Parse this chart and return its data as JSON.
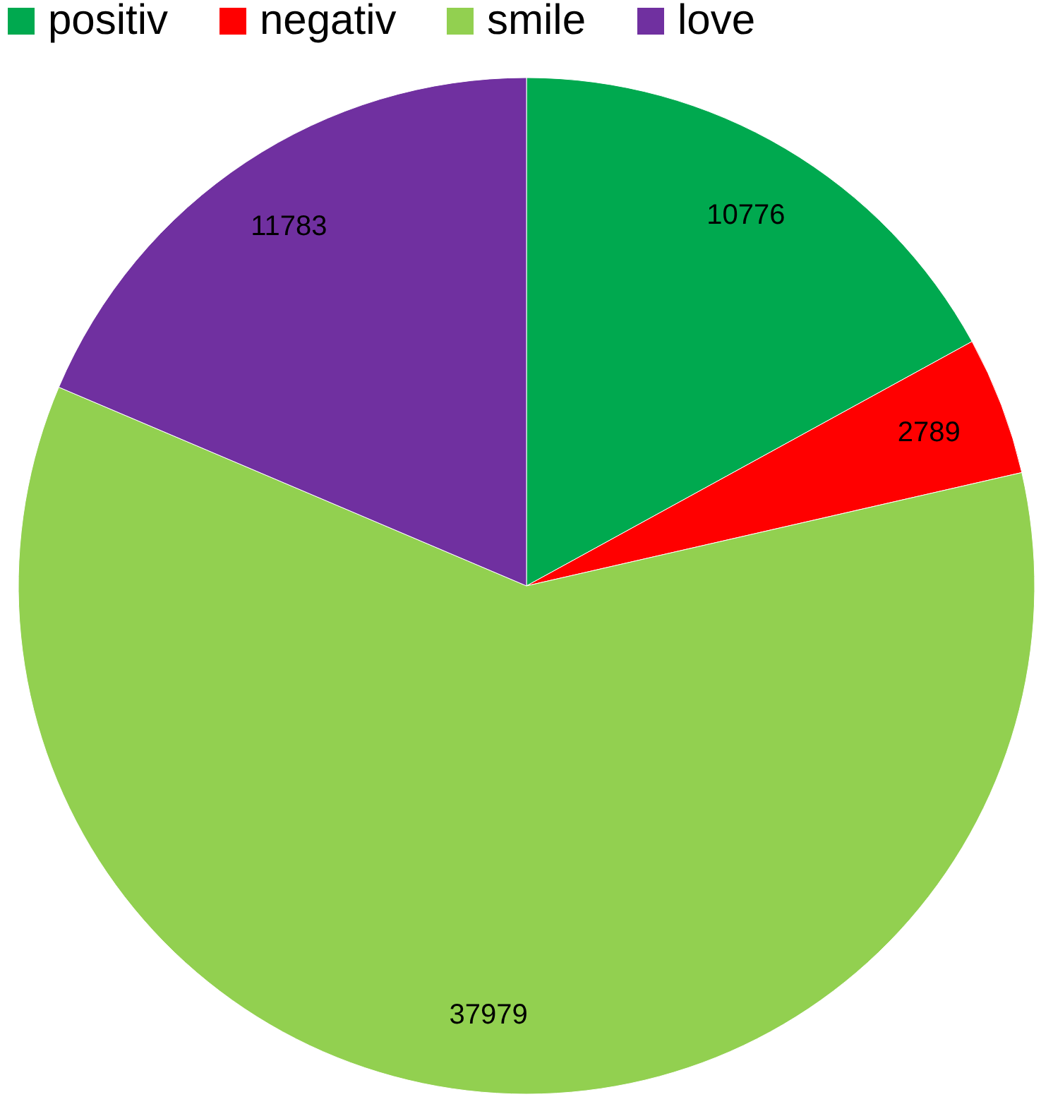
{
  "chart_data": {
    "type": "pie",
    "categories": [
      "positiv",
      "negativ",
      "smile",
      "love"
    ],
    "values": [
      10776,
      2789,
      37979,
      11783
    ],
    "colors": [
      "#00a94f",
      "#ff0000",
      "#92d050",
      "#7030a0"
    ],
    "data_labels": true,
    "legend": "top"
  }
}
